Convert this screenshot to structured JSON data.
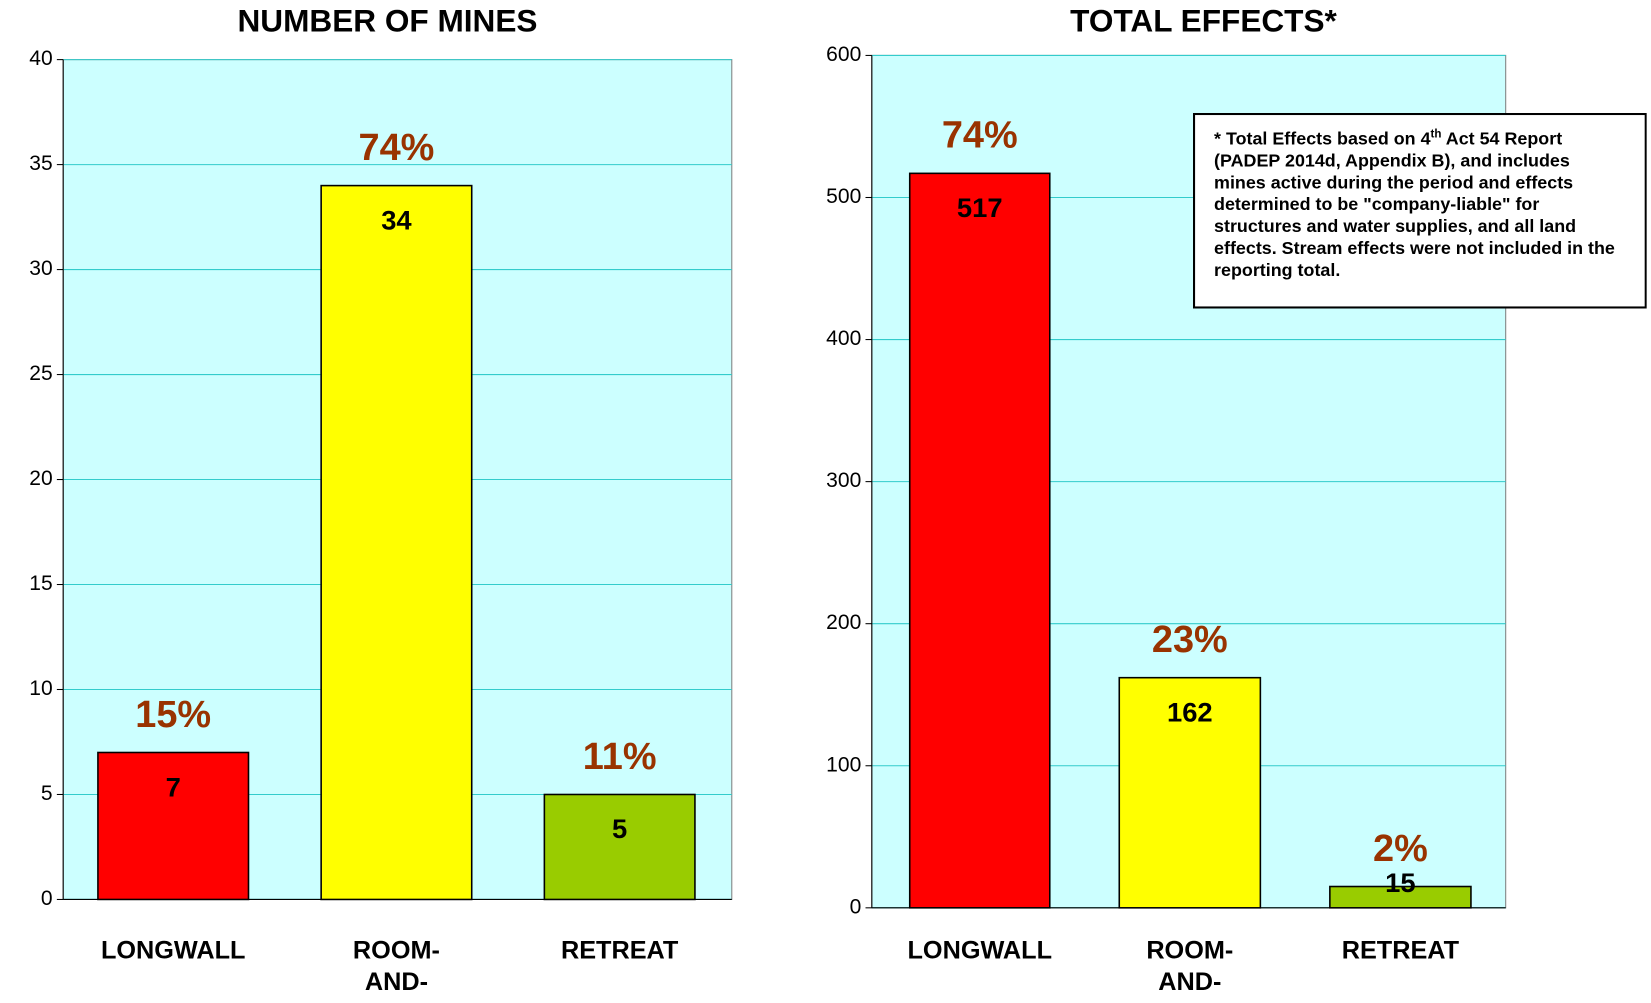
{
  "chart_data": [
    {
      "type": "bar",
      "title": "NUMBER OF MINES",
      "categories": [
        "LONGWALL",
        "ROOM-AND-PILLAR",
        "RETREAT"
      ],
      "values": [
        7,
        34,
        5
      ],
      "percent_labels": [
        "15%",
        "74%",
        "11%"
      ],
      "colors": [
        "#ff0000",
        "#ffff00",
        "#99cc00"
      ],
      "ylim": [
        0,
        40
      ],
      "yticks": [
        0,
        5,
        10,
        15,
        20,
        25,
        30,
        35,
        40
      ],
      "grid": true
    },
    {
      "type": "bar",
      "title": "TOTAL EFFECTS*",
      "categories": [
        "LONGWALL",
        "ROOM-AND-PILLAR",
        "RETREAT"
      ],
      "values": [
        517,
        162,
        15
      ],
      "percent_labels": [
        "74%",
        "23%",
        "2%"
      ],
      "colors": [
        "#ff0000",
        "#ffff00",
        "#99cc00"
      ],
      "ylim": [
        0,
        600
      ],
      "yticks": [
        0,
        100,
        200,
        300,
        400,
        500,
        600
      ],
      "grid": true,
      "note": [
        "* Total Effects based on 4",
        "th",
        " Act 54 Report (PADEP 2014d, Appendix B), and includes mines active during the period and effects determined to be \"company-liable\" for structures and water supplies, and all land effects.  Stream effects were not included in the reporting total."
      ]
    }
  ]
}
